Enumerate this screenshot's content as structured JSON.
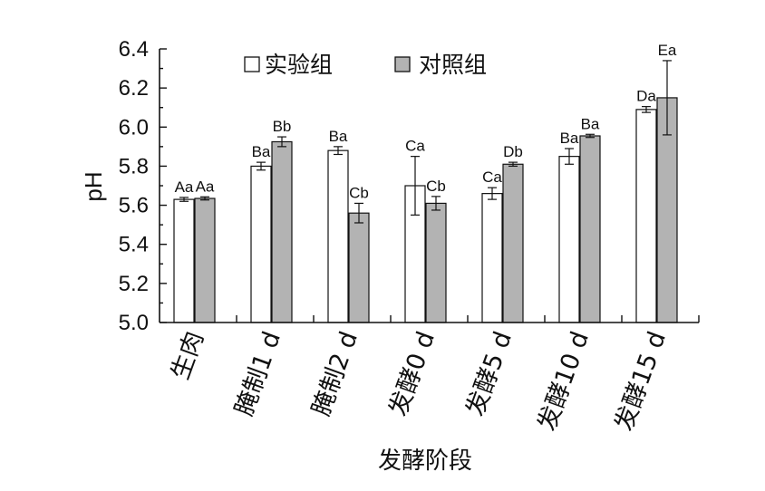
{
  "chart_data": {
    "type": "bar",
    "ylabel": "pH",
    "xlabel": "发酵阶段",
    "ylim": [
      5.0,
      6.4
    ],
    "yticks": [
      "5.0",
      "5.2",
      "5.4",
      "5.6",
      "5.8",
      "6.0",
      "6.2",
      "6.4"
    ],
    "categories": [
      "生肉",
      "腌制1 d",
      "腌制2 d",
      "发酵0 d",
      "发酵5 d",
      "发酵10 d",
      "发酵15 d"
    ],
    "series": [
      {
        "name": "实验组",
        "color": "#ffffff",
        "values": [
          5.63,
          5.8,
          5.88,
          5.7,
          5.66,
          5.85,
          6.09
        ],
        "errors": [
          0.01,
          0.02,
          0.02,
          0.15,
          0.03,
          0.04,
          0.015
        ],
        "labels": [
          "Aa",
          "Ba",
          "Ba",
          "Ca",
          "Ca",
          "Ba",
          "Da"
        ]
      },
      {
        "name": "对照组",
        "color": "#b3b3b3",
        "values": [
          5.635,
          5.925,
          5.56,
          5.61,
          5.81,
          5.955,
          6.15
        ],
        "errors": [
          0.008,
          0.025,
          0.05,
          0.035,
          0.01,
          0.008,
          0.19
        ],
        "labels": [
          "Aa",
          "Bb",
          "Cb",
          "Cb",
          "Db",
          "Ba",
          "Ea"
        ]
      }
    ],
    "legend_position": "top"
  }
}
